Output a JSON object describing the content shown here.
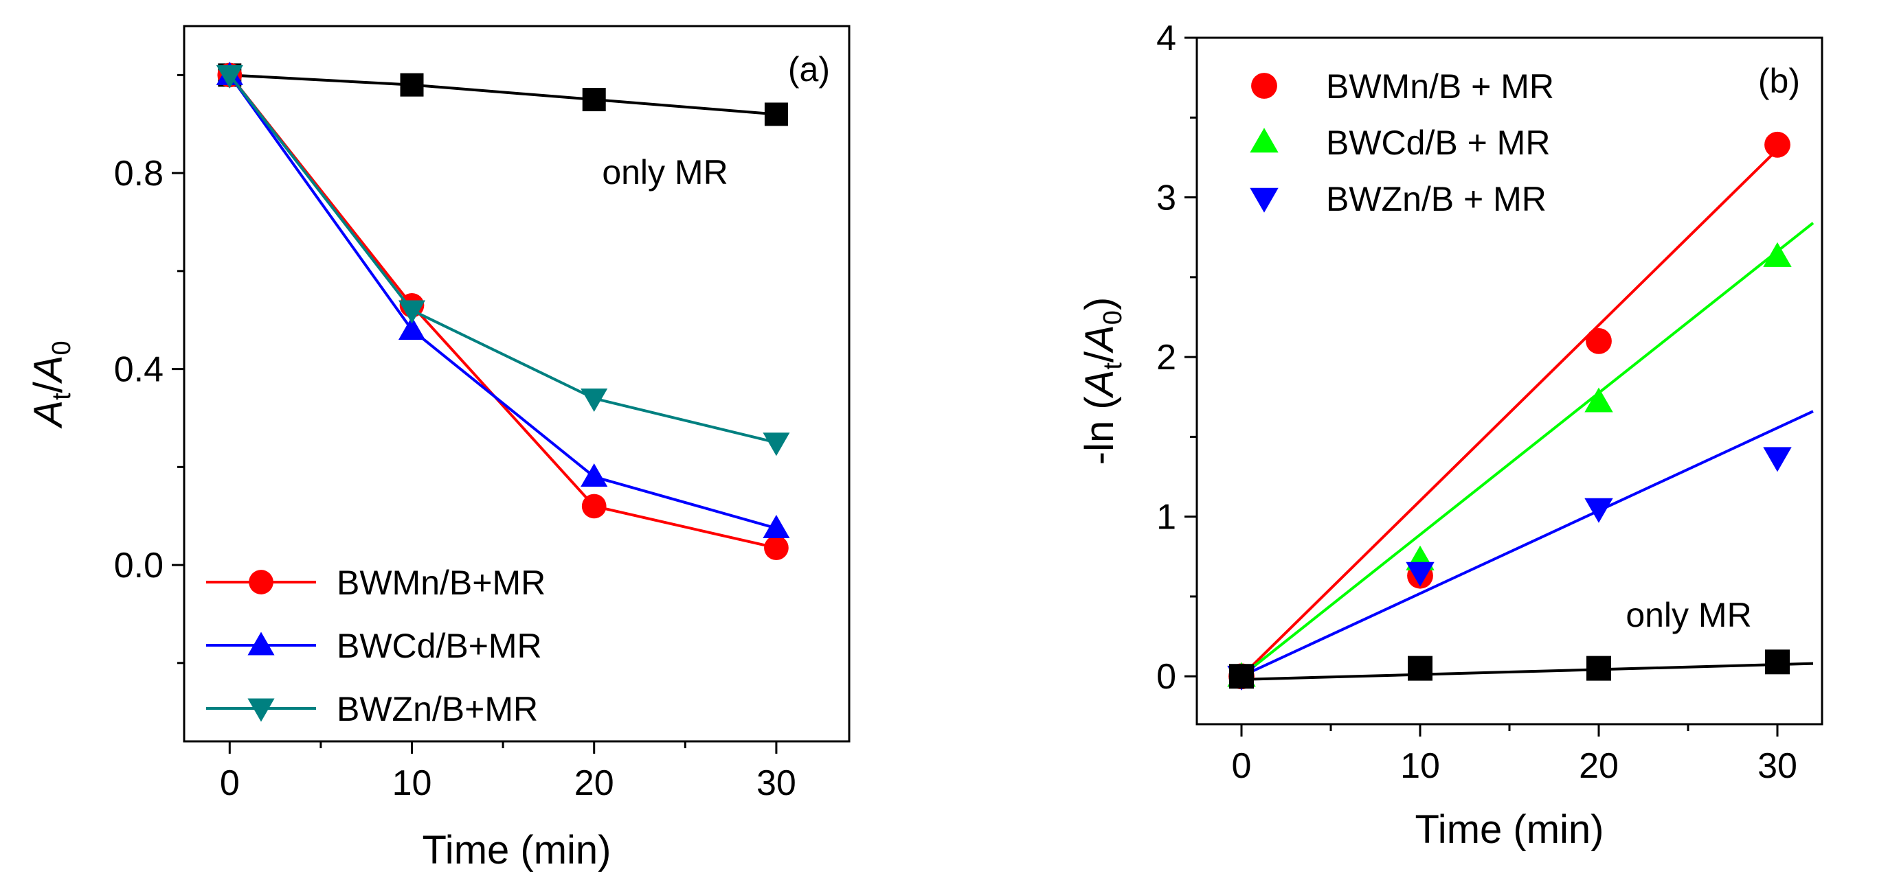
{
  "figure": {
    "background": "#ffffff"
  },
  "chart_data": [
    {
      "type": "line",
      "panel_label": "(a)",
      "xlabel": "Time (min)",
      "ylabel": {
        "main": "A",
        "sub1": "t",
        "slash": "/",
        "main2": "A",
        "sub2": "0"
      },
      "xlim": [
        -2.5,
        34
      ],
      "ylim": [
        -0.36,
        1.1
      ],
      "xticks": [
        0,
        10,
        20,
        30
      ],
      "xtick_labels": [
        "0",
        "10",
        "20",
        "30"
      ],
      "yticks": [
        0.0,
        0.4,
        0.8
      ],
      "ytick_labels": [
        "0.0",
        "0.4",
        "0.8"
      ],
      "grid": false,
      "legend_position": "bottom-left",
      "annotations": [
        {
          "text": "only MR"
        }
      ],
      "series": [
        {
          "name": "only MR",
          "in_legend": false,
          "color": "#000000",
          "marker": "square",
          "x": [
            0,
            10,
            20,
            30
          ],
          "y": [
            1.0,
            0.98,
            0.95,
            0.92
          ]
        },
        {
          "name": "BWMn/B+MR",
          "in_legend": true,
          "color": "#ff0000",
          "marker": "circle",
          "x": [
            0,
            10,
            20,
            30
          ],
          "y": [
            1.0,
            0.53,
            0.12,
            0.035
          ]
        },
        {
          "name": "BWCd/B+MR",
          "in_legend": true,
          "color": "#0000ff",
          "marker": "triangle-up",
          "x": [
            0,
            10,
            20,
            30
          ],
          "y": [
            1.0,
            0.48,
            0.18,
            0.075
          ]
        },
        {
          "name": "BWZn/B+MR",
          "in_legend": true,
          "color": "#008080",
          "marker": "triangle-down",
          "x": [
            0,
            10,
            20,
            30
          ],
          "y": [
            1.0,
            0.52,
            0.34,
            0.25
          ]
        }
      ]
    },
    {
      "type": "scatter",
      "panel_label": "(b)",
      "xlabel": "Time (min)",
      "ylabel": {
        "prefix": "-ln (",
        "main": "A",
        "sub1": "t",
        "slash": "/",
        "main2": "A",
        "sub2": "0",
        "suffix": ")"
      },
      "xlim": [
        -2.5,
        32.5
      ],
      "ylim": [
        -0.3,
        4.0
      ],
      "xticks": [
        0,
        10,
        20,
        30
      ],
      "xtick_labels": [
        "0",
        "10",
        "20",
        "30"
      ],
      "yticks": [
        0,
        1,
        2,
        3,
        4
      ],
      "ytick_labels": [
        "0",
        "1",
        "2",
        "3",
        "4"
      ],
      "grid": false,
      "legend_position": "top-left",
      "annotations": [
        {
          "text": "only MR"
        }
      ],
      "series": [
        {
          "name": "BWMn/B + MR",
          "in_legend": true,
          "color": "#ff0000",
          "marker": "circle",
          "x": [
            0,
            10,
            20,
            30
          ],
          "y": [
            0.0,
            0.63,
            2.1,
            3.33
          ],
          "fit": {
            "x": [
              0,
              30
            ],
            "y": [
              0.0,
              3.3
            ]
          }
        },
        {
          "name": "BWCd/B + MR",
          "in_legend": true,
          "color": "#00ff00",
          "marker": "triangle-up",
          "x": [
            0,
            10,
            20,
            30
          ],
          "y": [
            0.0,
            0.73,
            1.72,
            2.63
          ],
          "fit": {
            "x": [
              0,
              32
            ],
            "y": [
              0.0,
              2.84
            ]
          }
        },
        {
          "name": "BWZn/B + MR",
          "in_legend": true,
          "color": "#0000ff",
          "marker": "triangle-down",
          "x": [
            0,
            10,
            20,
            30
          ],
          "y": [
            0.0,
            0.65,
            1.05,
            1.37
          ],
          "fit": {
            "x": [
              0,
              32
            ],
            "y": [
              0.0,
              1.66
            ]
          }
        },
        {
          "name": "only MR",
          "in_legend": false,
          "color": "#000000",
          "marker": "square",
          "x": [
            0,
            10,
            20,
            30
          ],
          "y": [
            0.0,
            0.05,
            0.05,
            0.09
          ],
          "fit": {
            "x": [
              0,
              32
            ],
            "y": [
              -0.02,
              0.08
            ]
          }
        }
      ]
    }
  ]
}
